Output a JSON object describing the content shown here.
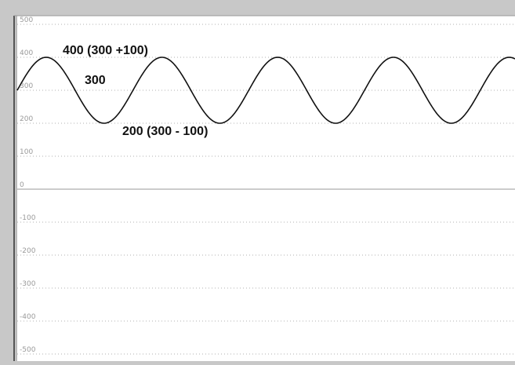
{
  "chart_data": {
    "type": "line",
    "title": "",
    "xlabel": "",
    "ylabel": "",
    "ylim": [
      -520,
      520
    ],
    "y_ticks": [
      "500",
      "400",
      "300",
      "200",
      "100",
      "0",
      "-100",
      "-200",
      "-300",
      "-400",
      "-500"
    ],
    "grid": true,
    "series": [
      {
        "function": "sine",
        "center": 300,
        "amplitude": 100,
        "max": 400,
        "min": 200,
        "cycles_visible": 4.3,
        "color": "#111111"
      }
    ],
    "annotations": {
      "max_label": "400 (300 +100)",
      "center_label": "300",
      "min_label": "200 (300 - 100)"
    }
  },
  "colors": {
    "background": "#ffffff",
    "frame": "#c8c8c8",
    "grid": "#b0b0b0",
    "zero_line": "#999999",
    "tick_label": "#9a9a9a",
    "curve": "#111111"
  }
}
